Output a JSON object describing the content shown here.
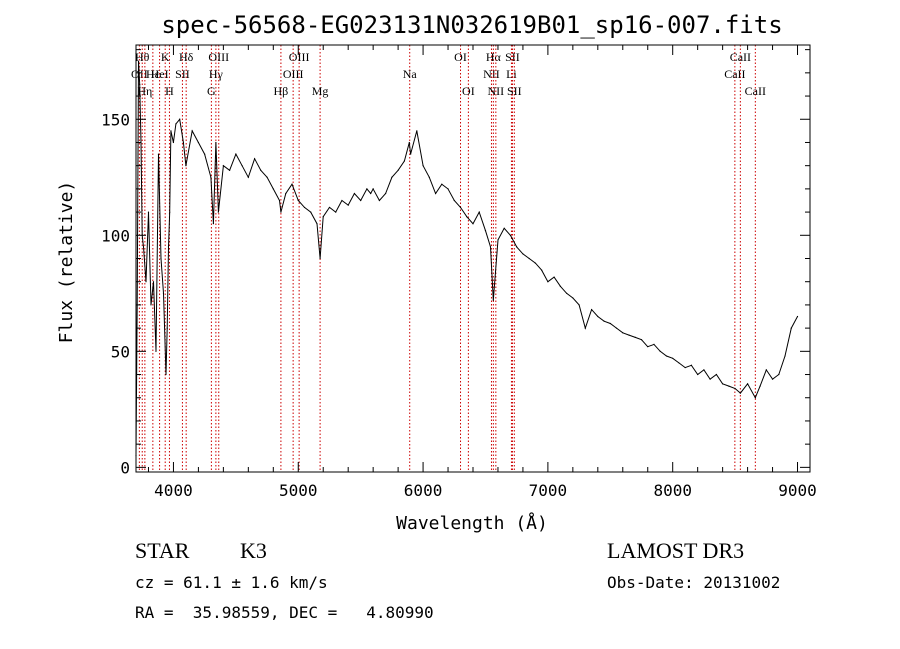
{
  "chart_data": {
    "type": "line",
    "title": "spec-56568-EG023131N032619B01_sp16-007.fits",
    "xlabel": "Wavelength (Å)",
    "ylabel": "Flux (relative)",
    "xlim": [
      3700,
      9100
    ],
    "ylim": [
      -2,
      182
    ],
    "xticks": [
      4000,
      5000,
      6000,
      7000,
      8000,
      9000
    ],
    "yticks": [
      0,
      50,
      100,
      150
    ],
    "grid": false,
    "series": [
      {
        "color": "#000000",
        "x": [
          3700,
          3710,
          3720,
          3730,
          3740,
          3750,
          3760,
          3780,
          3800,
          3820,
          3840,
          3860,
          3880,
          3900,
          3920,
          3940,
          3950,
          3960,
          3970,
          3980,
          4000,
          4020,
          4050,
          4080,
          4100,
          4150,
          4200,
          4250,
          4300,
          4320,
          4340,
          4360,
          4400,
          4450,
          4500,
          4550,
          4600,
          4650,
          4700,
          4750,
          4800,
          4850,
          4861,
          4900,
          4950,
          5000,
          5050,
          5100,
          5150,
          5175,
          5200,
          5250,
          5300,
          5350,
          5400,
          5450,
          5500,
          5550,
          5580,
          5600,
          5650,
          5700,
          5750,
          5800,
          5850,
          5890,
          5900,
          5950,
          6000,
          6050,
          6100,
          6150,
          6200,
          6250,
          6300,
          6350,
          6400,
          6450,
          6500,
          6540,
          6563,
          6600,
          6650,
          6700,
          6750,
          6800,
          6850,
          6900,
          6950,
          7000,
          7050,
          7100,
          7150,
          7200,
          7250,
          7300,
          7350,
          7400,
          7450,
          7500,
          7550,
          7600,
          7650,
          7700,
          7750,
          7800,
          7850,
          7900,
          7950,
          8000,
          8050,
          8100,
          8150,
          8200,
          8250,
          8300,
          8350,
          8400,
          8450,
          8500,
          8542,
          8600,
          8662,
          8700,
          8750,
          8800,
          8850,
          8900,
          8950,
          9000
        ],
        "y": [
          5,
          70,
          175,
          165,
          140,
          100,
          95,
          80,
          110,
          70,
          80,
          50,
          135,
          90,
          75,
          40,
          60,
          95,
          110,
          145,
          140,
          148,
          150,
          140,
          130,
          145,
          140,
          135,
          125,
          105,
          140,
          110,
          130,
          128,
          135,
          130,
          125,
          133,
          128,
          125,
          120,
          115,
          110,
          118,
          122,
          115,
          112,
          110,
          105,
          90,
          108,
          112,
          110,
          115,
          113,
          118,
          115,
          120,
          118,
          120,
          115,
          118,
          125,
          128,
          132,
          140,
          135,
          145,
          130,
          125,
          118,
          122,
          120,
          115,
          112,
          108,
          105,
          110,
          102,
          95,
          72,
          98,
          103,
          100,
          95,
          92,
          90,
          88,
          85,
          80,
          82,
          78,
          75,
          73,
          70,
          60,
          68,
          65,
          63,
          62,
          60,
          58,
          57,
          56,
          55,
          52,
          53,
          50,
          48,
          47,
          45,
          43,
          44,
          40,
          42,
          38,
          40,
          36,
          35,
          34,
          32,
          36,
          30,
          35,
          42,
          38,
          40,
          48,
          60,
          65
        ]
      }
    ],
    "lines": [
      {
        "w": 3727,
        "label": "OII",
        "row": 1
      },
      {
        "w": 3750,
        "label": "Hθ",
        "row": 0
      },
      {
        "w": 3771,
        "label": "Hη",
        "row": 2
      },
      {
        "w": 3835,
        "label": "Hε",
        "row": 1
      },
      {
        "w": 3889,
        "label": "HeI",
        "row": 1
      },
      {
        "w": 3934,
        "label": "K",
        "row": 0
      },
      {
        "w": 3968,
        "label": "H",
        "row": 2
      },
      {
        "w": 4072,
        "label": "SII",
        "row": 1
      },
      {
        "w": 4102,
        "label": "Hδ",
        "row": 0
      },
      {
        "w": 4304,
        "label": "G",
        "row": 2
      },
      {
        "w": 4340,
        "label": "Hγ",
        "row": 1
      },
      {
        "w": 4363,
        "label": "OIII",
        "row": 0
      },
      {
        "w": 4861,
        "label": "Hβ",
        "row": 2
      },
      {
        "w": 4959,
        "label": "OIII",
        "row": 1
      },
      {
        "w": 5007,
        "label": "OIII",
        "row": 0
      },
      {
        "w": 5175,
        "label": "Mg",
        "row": 2
      },
      {
        "w": 5893,
        "label": "Na",
        "row": 1
      },
      {
        "w": 6300,
        "label": "OI",
        "row": 0
      },
      {
        "w": 6363,
        "label": "OI",
        "row": 2
      },
      {
        "w": 6548,
        "label": "NII",
        "row": 1
      },
      {
        "w": 6563,
        "label": "Hα",
        "row": 0
      },
      {
        "w": 6583,
        "label": "NII",
        "row": 2
      },
      {
        "w": 6708,
        "label": "Li",
        "row": 1
      },
      {
        "w": 6716,
        "label": "SII",
        "row": 0
      },
      {
        "w": 6731,
        "label": "SII",
        "row": 2
      },
      {
        "w": 8498,
        "label": "CaII",
        "row": 1
      },
      {
        "w": 8542,
        "label": "CaII",
        "row": 0
      },
      {
        "w": 8662,
        "label": "CaII",
        "row": 2
      }
    ],
    "line_color": "#cc0000"
  },
  "info": {
    "object_class": "STAR",
    "subclass": "K3",
    "survey": "LAMOST DR3",
    "cz": "cz = 61.1 ± 1.6 km/s",
    "obs_date": "Obs-Date: 20131002",
    "radec": "RA =  35.98559, DEC =   4.80990"
  }
}
